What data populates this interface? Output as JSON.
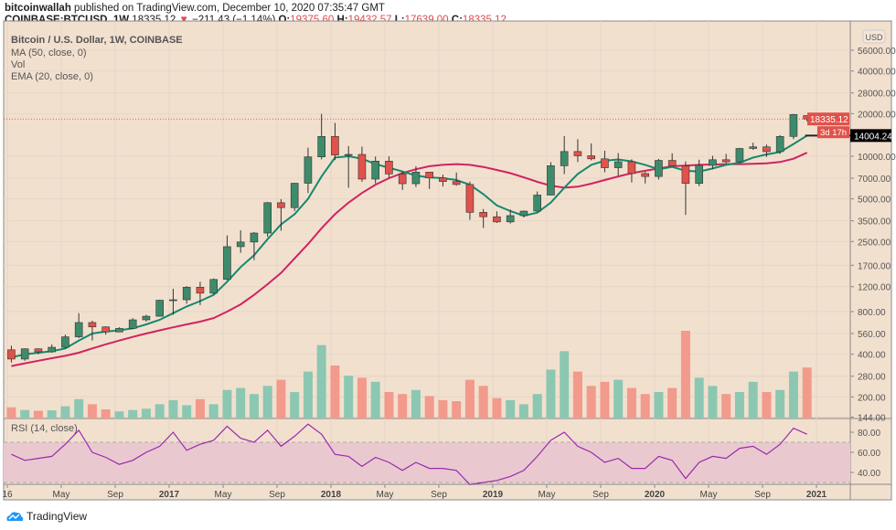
{
  "header": {
    "author": "bitcoinwallah",
    "published": "published on TradingView.com, December 10, 2020 07:35:47 GMT",
    "symbol": "COINBASE:BTCUSD, 1W",
    "last": "18335.12",
    "change": "−211.43 (−1.14%)",
    "o_label": "O:",
    "o": "19375.60",
    "h_label": "H:",
    "h": "19432.57",
    "l_label": "L:",
    "l": "17639.00",
    "c_label": "C:",
    "c": "18335.12"
  },
  "legend": {
    "title": "Bitcoin / U.S. Dollar, 1W, COINBASE",
    "ma": "MA (50, close, 0)",
    "vol": "Vol",
    "ema": "EMA (20, close, 0)",
    "rsi": "RSI (14, close)"
  },
  "price_axis": {
    "currency": "USD",
    "last_price_label": "18335.12",
    "countdown_label": "3d 17h",
    "crosshair_label": "14004.24"
  },
  "brand": "TradingView",
  "colors": {
    "background": "#f2e0cf",
    "up": "#3d8b6b",
    "down": "#e0524a",
    "vol_up": "#8cc7b2",
    "vol_down": "#f29a8c",
    "ma50": "#d0235f",
    "ema20": "#13896e",
    "rsi": "#9c27b0",
    "rsi_band": "#e9c9cf"
  },
  "chart_data": {
    "type": "candlestick",
    "y_scale": "log",
    "ylim": [
      130,
      80000
    ],
    "grid": true,
    "y_ticks": [
      56000,
      40000,
      28000,
      20000,
      10000,
      7000,
      5000,
      3500,
      2500,
      1700,
      1200,
      800,
      560,
      400,
      280,
      200,
      144
    ],
    "x_ticks": [
      "16",
      "May",
      "Sep",
      "2017",
      "May",
      "Sep",
      "2018",
      "May",
      "Sep",
      "2019",
      "May",
      "Sep",
      "2020",
      "May",
      "Sep",
      "2021"
    ],
    "x_tick_months": [
      0,
      4,
      8,
      12,
      16,
      20,
      24,
      28,
      32,
      36,
      40,
      44,
      48,
      52,
      56,
      60
    ],
    "periods": [
      "2016-01",
      "2016-02",
      "2016-03",
      "2016-04",
      "2016-05",
      "2016-06",
      "2016-07",
      "2016-08",
      "2016-09",
      "2016-10",
      "2016-11",
      "2016-12",
      "2017-01",
      "2017-02",
      "2017-03",
      "2017-04",
      "2017-05",
      "2017-06",
      "2017-07",
      "2017-08",
      "2017-09",
      "2017-10",
      "2017-11",
      "2017-12",
      "2018-01",
      "2018-02",
      "2018-03",
      "2018-04",
      "2018-05",
      "2018-06",
      "2018-07",
      "2018-08",
      "2018-09",
      "2018-10",
      "2018-11",
      "2018-12",
      "2019-01",
      "2019-02",
      "2019-03",
      "2019-04",
      "2019-05",
      "2019-06",
      "2019-07",
      "2019-08",
      "2019-09",
      "2019-10",
      "2019-11",
      "2019-12",
      "2020-01",
      "2020-02",
      "2020-03",
      "2020-04",
      "2020-05",
      "2020-06",
      "2020-07",
      "2020-08",
      "2020-09",
      "2020-10",
      "2020-11",
      "2020-12"
    ],
    "ohlc": [
      [
        430,
        460,
        350,
        370
      ],
      [
        370,
        440,
        360,
        437
      ],
      [
        437,
        440,
        400,
        416
      ],
      [
        416,
        470,
        410,
        448
      ],
      [
        448,
        550,
        440,
        531
      ],
      [
        531,
        780,
        520,
        670
      ],
      [
        670,
        690,
        500,
        624
      ],
      [
        624,
        630,
        550,
        575
      ],
      [
        575,
        620,
        590,
        609
      ],
      [
        609,
        720,
        600,
        700
      ],
      [
        700,
        760,
        680,
        742
      ],
      [
        742,
        970,
        740,
        963
      ],
      [
        963,
        1160,
        760,
        970
      ],
      [
        970,
        1210,
        910,
        1190
      ],
      [
        1190,
        1300,
        890,
        1080
      ],
      [
        1080,
        1370,
        1060,
        1350
      ],
      [
        1350,
        2760,
        1340,
        2300
      ],
      [
        2300,
        3000,
        2080,
        2480
      ],
      [
        2480,
        2920,
        1850,
        2870
      ],
      [
        2870,
        4750,
        2700,
        4700
      ],
      [
        4700,
        4980,
        2980,
        4340
      ],
      [
        4340,
        6470,
        4110,
        6450
      ],
      [
        6450,
        11500,
        5500,
        9900
      ],
      [
        9900,
        19890,
        9500,
        13800
      ],
      [
        13800,
        17200,
        9400,
        10200
      ],
      [
        10200,
        11800,
        6000,
        10300
      ],
      [
        10300,
        11700,
        6600,
        6900
      ],
      [
        6900,
        9950,
        6430,
        9240
      ],
      [
        9240,
        9990,
        7030,
        7500
      ],
      [
        7500,
        7790,
        5780,
        6400
      ],
      [
        6400,
        8500,
        6070,
        7730
      ],
      [
        7730,
        7740,
        5880,
        7030
      ],
      [
        7030,
        7420,
        6120,
        6630
      ],
      [
        6630,
        7680,
        6200,
        6320
      ],
      [
        6320,
        6620,
        3560,
        4020
      ],
      [
        4020,
        4240,
        3120,
        3740
      ],
      [
        3740,
        4080,
        3380,
        3440
      ],
      [
        3440,
        4200,
        3350,
        3810
      ],
      [
        3810,
        4140,
        3700,
        4100
      ],
      [
        4100,
        5640,
        4040,
        5320
      ],
      [
        5320,
        9080,
        5300,
        8570
      ],
      [
        8570,
        13880,
        7480,
        10800
      ],
      [
        10800,
        13200,
        9100,
        10080
      ],
      [
        10080,
        12330,
        9360,
        9590
      ],
      [
        9590,
        10950,
        7710,
        8300
      ],
      [
        8300,
        10540,
        7300,
        9150
      ],
      [
        9150,
        9510,
        6530,
        7550
      ],
      [
        7550,
        7750,
        6430,
        7200
      ],
      [
        7200,
        9580,
        6850,
        9350
      ],
      [
        9350,
        10500,
        8450,
        8550
      ],
      [
        8550,
        9190,
        3850,
        6430
      ],
      [
        6430,
        9460,
        6150,
        8620
      ],
      [
        8620,
        10080,
        8120,
        9450
      ],
      [
        9450,
        10390,
        8900,
        9140
      ],
      [
        9140,
        11450,
        8970,
        11350
      ],
      [
        11350,
        12470,
        11100,
        11650
      ],
      [
        11650,
        12090,
        9900,
        10780
      ],
      [
        10780,
        14100,
        10400,
        13800
      ],
      [
        13800,
        19900,
        13200,
        19700
      ],
      [
        19375.6,
        19432.57,
        17639.0,
        18335.12
      ]
    ],
    "ma50": [
      330,
      345,
      360,
      375,
      390,
      410,
      440,
      470,
      500,
      530,
      560,
      590,
      620,
      650,
      680,
      720,
      800,
      900,
      1050,
      1250,
      1500,
      1900,
      2400,
      3100,
      3900,
      4700,
      5500,
      6300,
      7000,
      7600,
      8100,
      8500,
      8700,
      8800,
      8700,
      8400,
      8000,
      7600,
      7100,
      6600,
      6200,
      6000,
      6100,
      6400,
      6800,
      7200,
      7600,
      7900,
      8200,
      8500,
      8600,
      8700,
      8750,
      8800,
      8800,
      8850,
      8900,
      9100,
      9600,
      10600
    ],
    "ema20": [
      380,
      400,
      410,
      420,
      440,
      500,
      560,
      580,
      590,
      610,
      650,
      700,
      780,
      870,
      950,
      1050,
      1300,
      1650,
      2000,
      2600,
      3300,
      3900,
      5000,
      7200,
      9800,
      10000,
      9600,
      8800,
      8300,
      7800,
      7300,
      7100,
      7000,
      6800,
      6300,
      5400,
      4500,
      4100,
      3800,
      4000,
      4700,
      6000,
      7500,
      8700,
      9300,
      9500,
      9200,
      8700,
      8100,
      8400,
      7900,
      7800,
      8200,
      8700,
      9000,
      9800,
      10300,
      10700,
      12200,
      14000
    ],
    "volume": [
      55,
      42,
      38,
      40,
      60,
      95,
      70,
      45,
      35,
      42,
      48,
      70,
      90,
      65,
      95,
      70,
      140,
      150,
      120,
      160,
      190,
      130,
      230,
      360,
      260,
      210,
      200,
      180,
      130,
      120,
      140,
      110,
      90,
      85,
      190,
      160,
      100,
      90,
      70,
      120,
      240,
      330,
      230,
      160,
      180,
      190,
      150,
      120,
      130,
      150,
      430,
      200,
      160,
      120,
      130,
      180,
      130,
      140,
      230,
      250
    ],
    "vol_direction": [
      "d",
      "u",
      "d",
      "u",
      "u",
      "u",
      "d",
      "d",
      "u",
      "u",
      "u",
      "u",
      "u",
      "u",
      "d",
      "u",
      "u",
      "u",
      "u",
      "u",
      "d",
      "u",
      "u",
      "u",
      "d",
      "u",
      "d",
      "u",
      "d",
      "d",
      "u",
      "d",
      "d",
      "d",
      "d",
      "d",
      "d",
      "u",
      "u",
      "u",
      "u",
      "u",
      "d",
      "d",
      "d",
      "u",
      "d",
      "d",
      "u",
      "d",
      "d",
      "u",
      "u",
      "d",
      "u",
      "u",
      "d",
      "u",
      "u",
      "d"
    ],
    "rsi": {
      "ylim": [
        20,
        95
      ],
      "ticks": [
        80,
        60,
        40
      ],
      "band": [
        30,
        70
      ],
      "values": [
        58,
        52,
        54,
        56,
        68,
        82,
        60,
        55,
        48,
        52,
        60,
        66,
        80,
        62,
        68,
        72,
        86,
        74,
        70,
        82,
        66,
        76,
        88,
        78,
        58,
        56,
        46,
        55,
        50,
        42,
        50,
        44,
        44,
        42,
        28,
        30,
        32,
        36,
        42,
        56,
        72,
        80,
        66,
        60,
        50,
        54,
        44,
        44,
        56,
        52,
        34,
        50,
        56,
        54,
        64,
        66,
        58,
        68,
        84,
        78
      ]
    }
  }
}
